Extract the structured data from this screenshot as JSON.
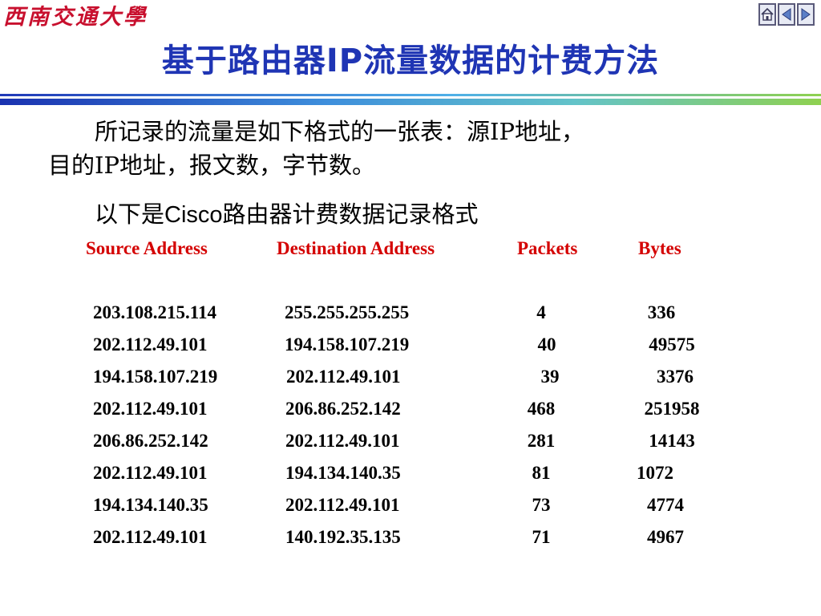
{
  "logo": {
    "text": "西南交通大學"
  },
  "nav": {
    "home_icon": "home-icon",
    "prev_icon": "triangle-left-icon",
    "next_icon": "triangle-right-icon"
  },
  "title": "基于路由器IP流量数据的计费方法",
  "intro": {
    "line1": "所记录的流量是如下格式的一张表：源IP地址，",
    "line2": "目的IP地址，报文数，字节数。"
  },
  "format_line": {
    "prefix": "以下是",
    "brand": "Cisco",
    "suffix": "路由器计费数据记录格式"
  },
  "table": {
    "headers": [
      "Source Address",
      "Destination Address",
      "Packets",
      "Bytes"
    ],
    "rows": [
      [
        "203.108.215.114",
        "255.255.255.255",
        "4",
        "336"
      ],
      [
        "202.112.49.101",
        "194.158.107.219",
        "40",
        "49575"
      ],
      [
        "194.158.107.219",
        "202.112.49.101",
        "39",
        "3376"
      ],
      [
        "202.112.49.101",
        "206.86.252.142",
        "468",
        "251958"
      ],
      [
        "206.86.252.142",
        "202.112.49.101",
        "281",
        "14143"
      ],
      [
        "202.112.49.101",
        "194.134.140.35",
        "81",
        "1072"
      ],
      [
        "194.134.140.35",
        "202.112.49.101",
        "73",
        "4774"
      ],
      [
        "202.112.49.101",
        "140.192.35.135",
        "71",
        "4967"
      ]
    ]
  }
}
